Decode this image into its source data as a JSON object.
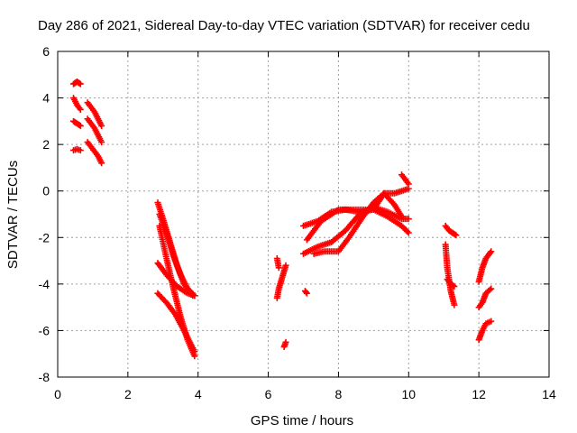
{
  "chart_data": {
    "type": "scatter",
    "title": "Day 286 of 2021, Sidereal Day-to-day VTEC variation (SDTVAR) for receiver cedu",
    "xlabel": "GPS time / hours",
    "ylabel": "SDTVAR / TECUs",
    "xlim": [
      0,
      14
    ],
    "ylim": [
      -8,
      6
    ],
    "x_ticks": [
      "0",
      "2",
      "4",
      "6",
      "8",
      "10",
      "12",
      "14"
    ],
    "y_ticks": [
      "-8",
      "-6",
      "-4",
      "-2",
      "0",
      "2",
      "4",
      "6"
    ],
    "grid": true,
    "marker": "plus",
    "color": "#ff0000",
    "segments": [
      [
        [
          0.45,
          4.6
        ],
        [
          0.55,
          4.7
        ],
        [
          0.65,
          4.6
        ]
      ],
      [
        [
          0.45,
          4.0
        ],
        [
          0.55,
          3.7
        ],
        [
          0.65,
          3.5
        ]
      ],
      [
        [
          0.45,
          3.0
        ],
        [
          0.55,
          2.9
        ],
        [
          0.65,
          2.8
        ]
      ],
      [
        [
          0.45,
          1.75
        ],
        [
          0.55,
          1.8
        ],
        [
          0.65,
          1.75
        ]
      ],
      [
        [
          0.85,
          3.8
        ],
        [
          0.95,
          3.6
        ],
        [
          1.05,
          3.4
        ],
        [
          1.15,
          3.1
        ],
        [
          1.25,
          2.8
        ]
      ],
      [
        [
          0.85,
          3.1
        ],
        [
          0.95,
          2.9
        ],
        [
          1.05,
          2.7
        ],
        [
          1.15,
          2.4
        ],
        [
          1.25,
          2.1
        ]
      ],
      [
        [
          0.85,
          2.1
        ],
        [
          0.95,
          1.9
        ],
        [
          1.05,
          1.7
        ],
        [
          1.15,
          1.5
        ],
        [
          1.25,
          1.2
        ]
      ],
      [
        [
          2.85,
          -0.5
        ],
        [
          3.0,
          -1.2
        ],
        [
          3.2,
          -2.2
        ],
        [
          3.4,
          -3.2
        ],
        [
          3.6,
          -4.0
        ],
        [
          3.85,
          -4.5
        ]
      ],
      [
        [
          2.9,
          -1.0
        ],
        [
          3.1,
          -1.8
        ],
        [
          3.3,
          -2.8
        ],
        [
          3.5,
          -3.6
        ],
        [
          3.7,
          -4.2
        ],
        [
          3.9,
          -4.5
        ]
      ],
      [
        [
          2.85,
          -3.1
        ],
        [
          3.1,
          -3.6
        ],
        [
          3.4,
          -4.1
        ],
        [
          3.7,
          -4.4
        ],
        [
          3.9,
          -4.5
        ]
      ],
      [
        [
          2.9,
          -1.5
        ],
        [
          3.1,
          -2.9
        ],
        [
          3.3,
          -4.2
        ],
        [
          3.5,
          -5.4
        ],
        [
          3.7,
          -6.4
        ],
        [
          3.9,
          -7.1
        ]
      ],
      [
        [
          2.85,
          -4.4
        ],
        [
          3.1,
          -4.8
        ],
        [
          3.35,
          -5.3
        ],
        [
          3.6,
          -6.0
        ],
        [
          3.8,
          -6.6
        ],
        [
          3.9,
          -6.9
        ]
      ],
      [
        [
          6.25,
          -2.9
        ],
        [
          6.3,
          -3.3
        ]
      ],
      [
        [
          6.25,
          -4.6
        ],
        [
          6.3,
          -4.2
        ],
        [
          6.4,
          -3.7
        ],
        [
          6.5,
          -3.2
        ]
      ],
      [
        [
          6.45,
          -6.7
        ],
        [
          6.5,
          -6.5
        ]
      ],
      [
        [
          7.05,
          -4.3
        ],
        [
          7.1,
          -4.4
        ]
      ],
      [
        [
          7.0,
          -2.7
        ],
        [
          7.4,
          -2.4
        ],
        [
          7.8,
          -2.2
        ],
        [
          8.2,
          -1.7
        ],
        [
          8.6,
          -1.0
        ],
        [
          9.0,
          -0.7
        ],
        [
          9.4,
          -0.9
        ],
        [
          9.8,
          -1.2
        ],
        [
          10.0,
          -1.2
        ]
      ],
      [
        [
          7.0,
          -1.5
        ],
        [
          7.4,
          -1.3
        ],
        [
          7.8,
          -0.9
        ],
        [
          8.2,
          -0.8
        ],
        [
          8.6,
          -0.9
        ],
        [
          9.0,
          -0.8
        ],
        [
          9.3,
          -0.1
        ],
        [
          9.6,
          -0.1
        ],
        [
          10.0,
          0.1
        ]
      ],
      [
        [
          7.1,
          -2.1
        ],
        [
          7.5,
          -1.3
        ],
        [
          8.0,
          -0.8
        ],
        [
          8.5,
          -0.8
        ],
        [
          9.0,
          -0.8
        ],
        [
          9.4,
          -1.1
        ],
        [
          9.8,
          -1.5
        ],
        [
          10.0,
          -1.8
        ]
      ],
      [
        [
          7.3,
          -2.7
        ],
        [
          7.6,
          -2.6
        ],
        [
          8.0,
          -2.6
        ],
        [
          8.3,
          -2.0
        ],
        [
          8.7,
          -1.1
        ],
        [
          9.0,
          -0.5
        ],
        [
          9.3,
          -0.1
        ],
        [
          9.6,
          -0.6
        ],
        [
          9.8,
          -1.1
        ]
      ],
      [
        [
          9.8,
          0.7
        ],
        [
          9.9,
          0.5
        ],
        [
          10.0,
          0.3
        ]
      ],
      [
        [
          11.05,
          -1.5
        ],
        [
          11.15,
          -1.7
        ],
        [
          11.25,
          -1.8
        ],
        [
          11.35,
          -1.9
        ]
      ],
      [
        [
          11.05,
          -2.3
        ],
        [
          11.1,
          -3.3
        ],
        [
          11.2,
          -4.3
        ],
        [
          11.3,
          -4.9
        ]
      ],
      [
        [
          11.1,
          -3.8
        ],
        [
          11.2,
          -4.0
        ],
        [
          11.3,
          -4.1
        ]
      ],
      [
        [
          12.0,
          -3.9
        ],
        [
          12.1,
          -3.3
        ],
        [
          12.2,
          -2.9
        ],
        [
          12.35,
          -2.6
        ]
      ],
      [
        [
          12.0,
          -5.0
        ],
        [
          12.1,
          -4.8
        ],
        [
          12.2,
          -4.4
        ],
        [
          12.35,
          -4.2
        ]
      ],
      [
        [
          12.0,
          -6.4
        ],
        [
          12.1,
          -6.0
        ],
        [
          12.2,
          -5.7
        ],
        [
          12.35,
          -5.6
        ]
      ]
    ]
  }
}
